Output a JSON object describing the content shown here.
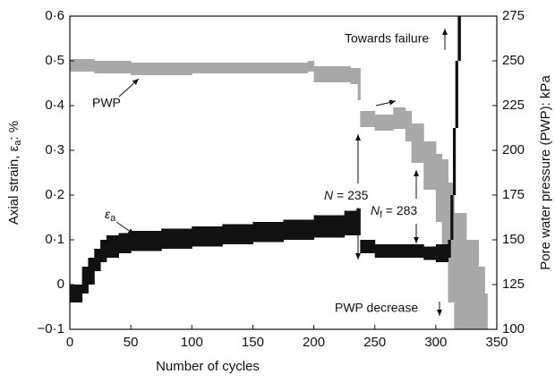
{
  "chart_data": {
    "type": "band",
    "x_label": "Number of cycles",
    "y_label": {
      "main": "Axial strain, ε",
      "sub": "a",
      "end": ": %"
    },
    "y2_label": "Pore water pressure (PWP): kPa",
    "xlim": [
      0,
      350
    ],
    "xticks": [
      0,
      50,
      100,
      150,
      200,
      250,
      300,
      350
    ],
    "ylim": [
      -0.1,
      0.6
    ],
    "yticks": [
      {
        "value": -0.1,
        "label": "−0·1"
      },
      0,
      {
        "value": 0.1,
        "label": "0·1"
      },
      {
        "value": 0.2,
        "label": "0·2"
      },
      {
        "value": 0.3,
        "label": "0·3"
      },
      {
        "value": 0.4,
        "label": "0·4"
      },
      {
        "value": 0.5,
        "label": "0·5"
      },
      {
        "value": 0.6,
        "label": "0·6"
      }
    ],
    "y2lim": [
      100,
      275
    ],
    "y2ticks": [
      100,
      125,
      150,
      175,
      200,
      225,
      250,
      275
    ],
    "series": [
      {
        "color": "#111111",
        "axis": "y",
        "x": [
          0,
          10,
          15,
          20,
          25,
          30,
          40,
          50,
          75,
          100,
          125,
          150,
          175,
          200,
          225,
          235,
          238,
          250,
          275,
          290,
          300,
          305,
          310,
          312,
          314,
          316,
          318
        ],
        "lower": [
          -0.04,
          -0.02,
          0.0,
          0.03,
          0.05,
          0.06,
          0.07,
          0.075,
          0.08,
          0.085,
          0.09,
          0.095,
          0.1,
          0.105,
          0.11,
          0.11,
          0.07,
          0.06,
          0.06,
          0.055,
          0.05,
          0.05,
          0.06,
          0.1,
          0.2,
          0.35,
          0.5
        ],
        "upper": [
          0.0,
          0.04,
          0.06,
          0.08,
          0.1,
          0.11,
          0.115,
          0.12,
          0.125,
          0.13,
          0.135,
          0.14,
          0.145,
          0.155,
          0.165,
          0.17,
          0.1,
          0.09,
          0.09,
          0.085,
          0.09,
          0.09,
          0.1,
          0.2,
          0.35,
          0.5,
          0.6
        ]
      },
      {
        "color": "#a8a8a8",
        "axis": "y2",
        "x": [
          0,
          20,
          50,
          100,
          150,
          195,
          200,
          230,
          236,
          238,
          250,
          265,
          275,
          280,
          290,
          300,
          305,
          310,
          315,
          325,
          335,
          340
        ],
        "lower": [
          244,
          243,
          242,
          243,
          243,
          244,
          238,
          237,
          228,
          213,
          211,
          212,
          205,
          193,
          178,
          160,
          140,
          115,
          100,
          100,
          100,
          100
        ],
        "upper": [
          251,
          250,
          249,
          249,
          249,
          250,
          247,
          246,
          246,
          222,
          220,
          224,
          222,
          215,
          205,
          198,
          195,
          182,
          165,
          150,
          135,
          120
        ]
      }
    ],
    "annotations": {
      "towards_failure": "Towards failure",
      "pwp": "PWP",
      "strain": {
        "main": "ε",
        "sub": "a"
      },
      "n": {
        "main": "N",
        "rest": " = 235"
      },
      "nf": {
        "main": "N",
        "sub": "f",
        "rest": " = 283"
      },
      "pwp_decrease": "PWP decrease"
    }
  }
}
